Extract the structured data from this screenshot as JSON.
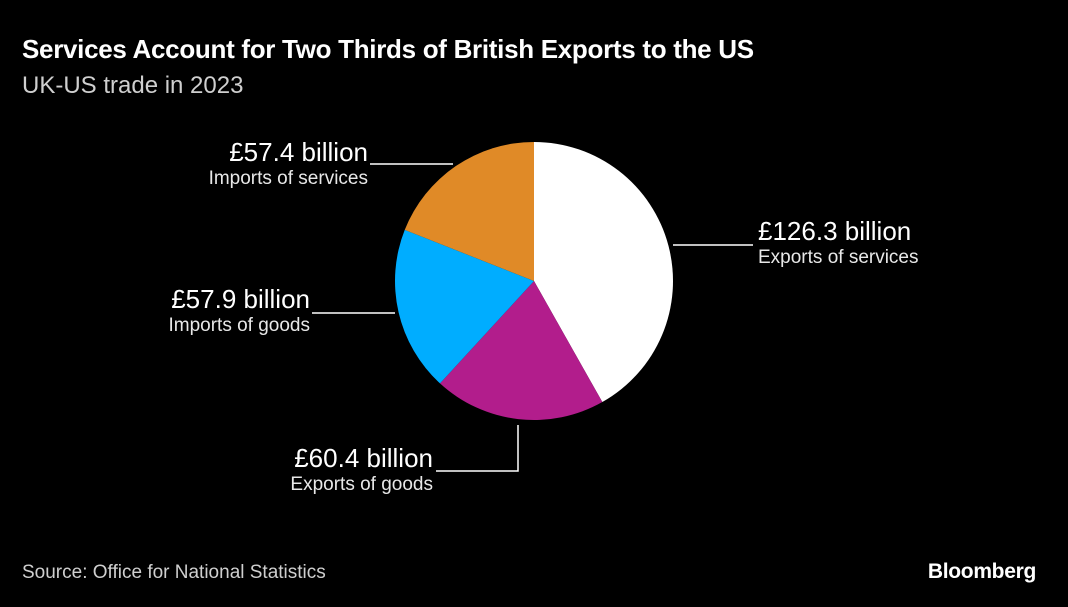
{
  "header": {
    "title": "Services Account for Two Thirds of British Exports to the US",
    "subtitle": "UK-US trade in 2023"
  },
  "footer": {
    "source": "Source: Office for National Statistics",
    "brand": "Bloomberg"
  },
  "labels": {
    "exports_services": {
      "value": "£126.3 billion",
      "category": "Exports of services"
    },
    "exports_goods": {
      "value": "£60.4 billion",
      "category": "Exports of goods"
    },
    "imports_goods": {
      "value": "£57.9 billion",
      "category": "Imports of goods"
    },
    "imports_services": {
      "value": "£57.4 billion",
      "category": "Imports of services"
    }
  },
  "chart_data": {
    "type": "pie",
    "title": "Services Account for Two Thirds of British Exports to the US",
    "subtitle": "UK-US trade in 2023",
    "unit": "£ billion",
    "categories": [
      "Exports of services",
      "Exports of goods",
      "Imports of goods",
      "Imports of services"
    ],
    "values": [
      126.3,
      60.4,
      57.9,
      57.4
    ],
    "colors": [
      "#ffffff",
      "#b21d8c",
      "#00adff",
      "#e08a27"
    ],
    "start_angle": "12 o'clock, clockwise",
    "legend": "none (direct labels with leader lines)",
    "source": "Source: Office for National Statistics"
  }
}
